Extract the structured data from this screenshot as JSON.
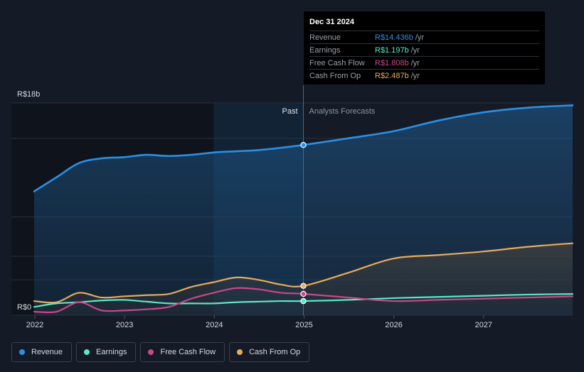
{
  "chart_data": {
    "type": "line",
    "y_axis": {
      "max_label": "R$18b",
      "min_label": "R$0",
      "ylim": [
        0,
        18
      ]
    },
    "x_ticks": [
      2022,
      2023,
      2024,
      2025,
      2026,
      2027
    ],
    "xlim": [
      2022,
      2028
    ],
    "past_label": "Past",
    "forecast_label": "Analysts Forecasts",
    "divider_x": 2025.0,
    "highlight_start_x": 2024.0,
    "series": [
      {
        "name": "Revenue",
        "key": "revenue",
        "color": "#2c8fe6",
        "points": [
          [
            2022,
            10.5
          ],
          [
            2022.25,
            11.7
          ],
          [
            2022.5,
            12.9
          ],
          [
            2022.75,
            13.3
          ],
          [
            2023,
            13.4
          ],
          [
            2023.25,
            13.6
          ],
          [
            2023.5,
            13.5
          ],
          [
            2023.75,
            13.6
          ],
          [
            2024,
            13.8
          ],
          [
            2024.25,
            13.9
          ],
          [
            2024.5,
            14.0
          ],
          [
            2024.75,
            14.2
          ],
          [
            2025,
            14.436
          ],
          [
            2025.5,
            15.0
          ],
          [
            2026,
            15.6
          ],
          [
            2026.5,
            16.5
          ],
          [
            2027,
            17.2
          ],
          [
            2027.5,
            17.6
          ],
          [
            2028,
            17.8
          ]
        ]
      },
      {
        "name": "Earnings",
        "key": "earnings",
        "color": "#58e8c8",
        "points": [
          [
            2022,
            0.7
          ],
          [
            2022.25,
            1.0
          ],
          [
            2022.5,
            1.1
          ],
          [
            2022.75,
            1.25
          ],
          [
            2023,
            1.3
          ],
          [
            2023.25,
            1.15
          ],
          [
            2023.5,
            1.0
          ],
          [
            2023.75,
            1.0
          ],
          [
            2024,
            1.0
          ],
          [
            2024.25,
            1.1
          ],
          [
            2024.5,
            1.15
          ],
          [
            2024.75,
            1.2
          ],
          [
            2025,
            1.197
          ],
          [
            2025.5,
            1.3
          ],
          [
            2026,
            1.45
          ],
          [
            2026.5,
            1.55
          ],
          [
            2027,
            1.65
          ],
          [
            2027.5,
            1.75
          ],
          [
            2028,
            1.8
          ]
        ]
      },
      {
        "name": "Free Cash Flow",
        "key": "fcf",
        "color": "#c8488a",
        "points": [
          [
            2022,
            0.3
          ],
          [
            2022.25,
            0.3
          ],
          [
            2022.5,
            1.1
          ],
          [
            2022.75,
            0.4
          ],
          [
            2023,
            0.4
          ],
          [
            2023.25,
            0.5
          ],
          [
            2023.5,
            0.7
          ],
          [
            2023.75,
            1.4
          ],
          [
            2024,
            1.9
          ],
          [
            2024.25,
            2.3
          ],
          [
            2024.5,
            2.2
          ],
          [
            2024.75,
            1.9
          ],
          [
            2025,
            1.808
          ],
          [
            2025.5,
            1.5
          ],
          [
            2026,
            1.2
          ],
          [
            2026.5,
            1.3
          ],
          [
            2027,
            1.4
          ],
          [
            2027.5,
            1.5
          ],
          [
            2028,
            1.6
          ]
        ]
      },
      {
        "name": "Cash From Op",
        "key": "cfo",
        "color": "#e8ab5c",
        "points": [
          [
            2022,
            1.2
          ],
          [
            2022.25,
            1.1
          ],
          [
            2022.5,
            1.9
          ],
          [
            2022.75,
            1.5
          ],
          [
            2023,
            1.6
          ],
          [
            2023.25,
            1.7
          ],
          [
            2023.5,
            1.8
          ],
          [
            2023.75,
            2.4
          ],
          [
            2024,
            2.8
          ],
          [
            2024.25,
            3.2
          ],
          [
            2024.5,
            3.0
          ],
          [
            2024.75,
            2.6
          ],
          [
            2025,
            2.487
          ],
          [
            2025.5,
            3.6
          ],
          [
            2026,
            4.8
          ],
          [
            2026.5,
            5.1
          ],
          [
            2027,
            5.4
          ],
          [
            2027.5,
            5.8
          ],
          [
            2028,
            6.1
          ]
        ]
      }
    ]
  },
  "tooltip": {
    "date": "Dec 31 2024",
    "rows": [
      {
        "label": "Revenue",
        "value": "R$14.436b",
        "unit": "/yr",
        "color": "#2c8fe6"
      },
      {
        "label": "Earnings",
        "value": "R$1.197b",
        "unit": "/yr",
        "color": "#58e8c8"
      },
      {
        "label": "Free Cash Flow",
        "value": "R$1.808b",
        "unit": "/yr",
        "color": "#c8488a"
      },
      {
        "label": "Cash From Op",
        "value": "R$2.487b",
        "unit": "/yr",
        "color": "#e8ab5c"
      }
    ]
  },
  "legend": [
    {
      "label": "Revenue",
      "color": "#2c8fe6"
    },
    {
      "label": "Earnings",
      "color": "#58e8c8"
    },
    {
      "label": "Free Cash Flow",
      "color": "#c8488a"
    },
    {
      "label": "Cash From Op",
      "color": "#e8ab5c"
    }
  ]
}
